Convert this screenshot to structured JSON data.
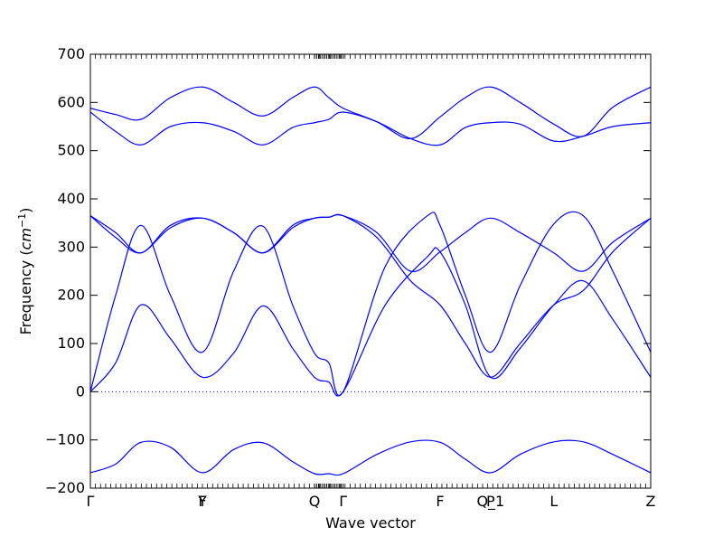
{
  "chart_data": {
    "type": "line",
    "title": "",
    "xlabel": "Wave vector",
    "ylabel_text": "Frequency (",
    "ylabel_unit_base": "cm",
    "ylabel_unit_exp": "−1",
    "ylabel_close": ")",
    "ylim": [
      -200,
      700
    ],
    "yticks": [
      -200,
      -100,
      0,
      100,
      200,
      300,
      400,
      500,
      600,
      700
    ],
    "ytick_labels": [
      "−200",
      "−100",
      "0",
      "100",
      "200",
      "300",
      "400",
      "500",
      "600",
      "700"
    ],
    "xlim": [
      0,
      6.65
    ],
    "high_symmetry_points": [
      {
        "label": "Γ",
        "x": 0
      },
      {
        "label": "Y",
        "x": 1.33
      },
      {
        "label": "F",
        "x": 1.33
      },
      {
        "label": "Q",
        "x": 2.66
      },
      {
        "label": "Γ",
        "x": 3.0
      },
      {
        "label": "F",
        "x": 4.15
      },
      {
        "label": "P",
        "x": 4.75
      },
      {
        "label": "Q_1",
        "x": 4.75
      },
      {
        "label": "L",
        "x": 5.5
      },
      {
        "label": "Z",
        "x": 6.65
      }
    ],
    "zero_line": true,
    "line_color": "#0000ff",
    "zero_line_color": "#0000ff",
    "series": [
      {
        "x": [
          0,
          0.3,
          0.6,
          0.95,
          1.33,
          1.7,
          2.05,
          2.4,
          2.66,
          2.83,
          3.0,
          3.4,
          3.8,
          4.15,
          4.45,
          4.75,
          5.1,
          5.5,
          5.85,
          6.2,
          6.65
        ],
        "values": [
          -168,
          -150,
          -105,
          -115,
          -168,
          -120,
          -106,
          -145,
          -170,
          -170,
          -170,
          -130,
          -104,
          -105,
          -140,
          -168,
          -130,
          -104,
          -104,
          -130,
          -168
        ]
      },
      {
        "x": [
          0,
          0.3,
          0.6,
          0.95,
          1.33,
          1.7,
          2.05,
          2.4,
          2.66,
          2.83,
          3.0,
          3.5,
          4.0,
          4.15,
          4.45,
          4.75,
          5.1,
          5.5,
          5.85,
          6.2,
          6.65
        ],
        "values": [
          0,
          60,
          180,
          110,
          30,
          80,
          178,
          90,
          30,
          20,
          0,
          180,
          280,
          290,
          180,
          30,
          90,
          180,
          230,
          150,
          30
        ]
      },
      {
        "x": [
          0,
          0.3,
          0.6,
          0.95,
          1.33,
          1.7,
          2.05,
          2.4,
          2.66,
          2.83,
          3.0,
          3.5,
          4.0,
          4.15,
          4.45,
          4.75,
          5.1,
          5.5,
          5.85,
          6.2,
          6.65
        ],
        "values": [
          0,
          200,
          345,
          200,
          82,
          250,
          343,
          180,
          80,
          60,
          0,
          260,
          365,
          345,
          200,
          82,
          220,
          348,
          365,
          250,
          82
        ]
      },
      {
        "x": [
          0,
          0.3,
          0.6,
          0.95,
          1.33,
          1.7,
          2.05,
          2.4,
          2.66,
          2.83,
          3.0,
          3.4,
          3.8,
          4.15,
          4.45,
          4.75,
          5.1,
          5.5,
          5.85,
          6.2,
          6.65
        ],
        "values": [
          365,
          320,
          288,
          340,
          360,
          330,
          288,
          340,
          360,
          362,
          365,
          320,
          230,
          180,
          100,
          30,
          100,
          180,
          210,
          290,
          360
        ]
      },
      {
        "x": [
          0,
          0.3,
          0.6,
          0.95,
          1.33,
          1.7,
          2.05,
          2.4,
          2.66,
          2.83,
          3.0,
          3.4,
          3.8,
          4.15,
          4.45,
          4.75,
          5.1,
          5.5,
          5.85,
          6.2,
          6.65
        ],
        "values": [
          365,
          330,
          288,
          345,
          360,
          330,
          288,
          345,
          360,
          362,
          365,
          330,
          250,
          290,
          330,
          360,
          330,
          288,
          250,
          310,
          360
        ]
      },
      {
        "x": [
          0,
          0.3,
          0.6,
          0.95,
          1.33,
          1.7,
          2.05,
          2.4,
          2.66,
          2.83,
          3.0,
          3.4,
          3.8,
          4.15,
          4.45,
          4.75,
          5.1,
          5.5,
          5.85,
          6.2,
          6.65
        ],
        "values": [
          580,
          540,
          512,
          550,
          558,
          540,
          512,
          548,
          558,
          565,
          580,
          560,
          525,
          512,
          548,
          558,
          555,
          520,
          530,
          550,
          558
        ]
      },
      {
        "x": [
          0,
          0.3,
          0.6,
          0.95,
          1.33,
          1.7,
          2.05,
          2.4,
          2.66,
          2.83,
          3.0,
          3.4,
          3.8,
          4.15,
          4.45,
          4.75,
          5.1,
          5.5,
          5.85,
          6.2,
          6.65
        ],
        "values": [
          588,
          575,
          565,
          610,
          632,
          600,
          572,
          610,
          632,
          610,
          588,
          560,
          525,
          570,
          610,
          632,
          600,
          555,
          530,
          590,
          632
        ]
      }
    ]
  }
}
